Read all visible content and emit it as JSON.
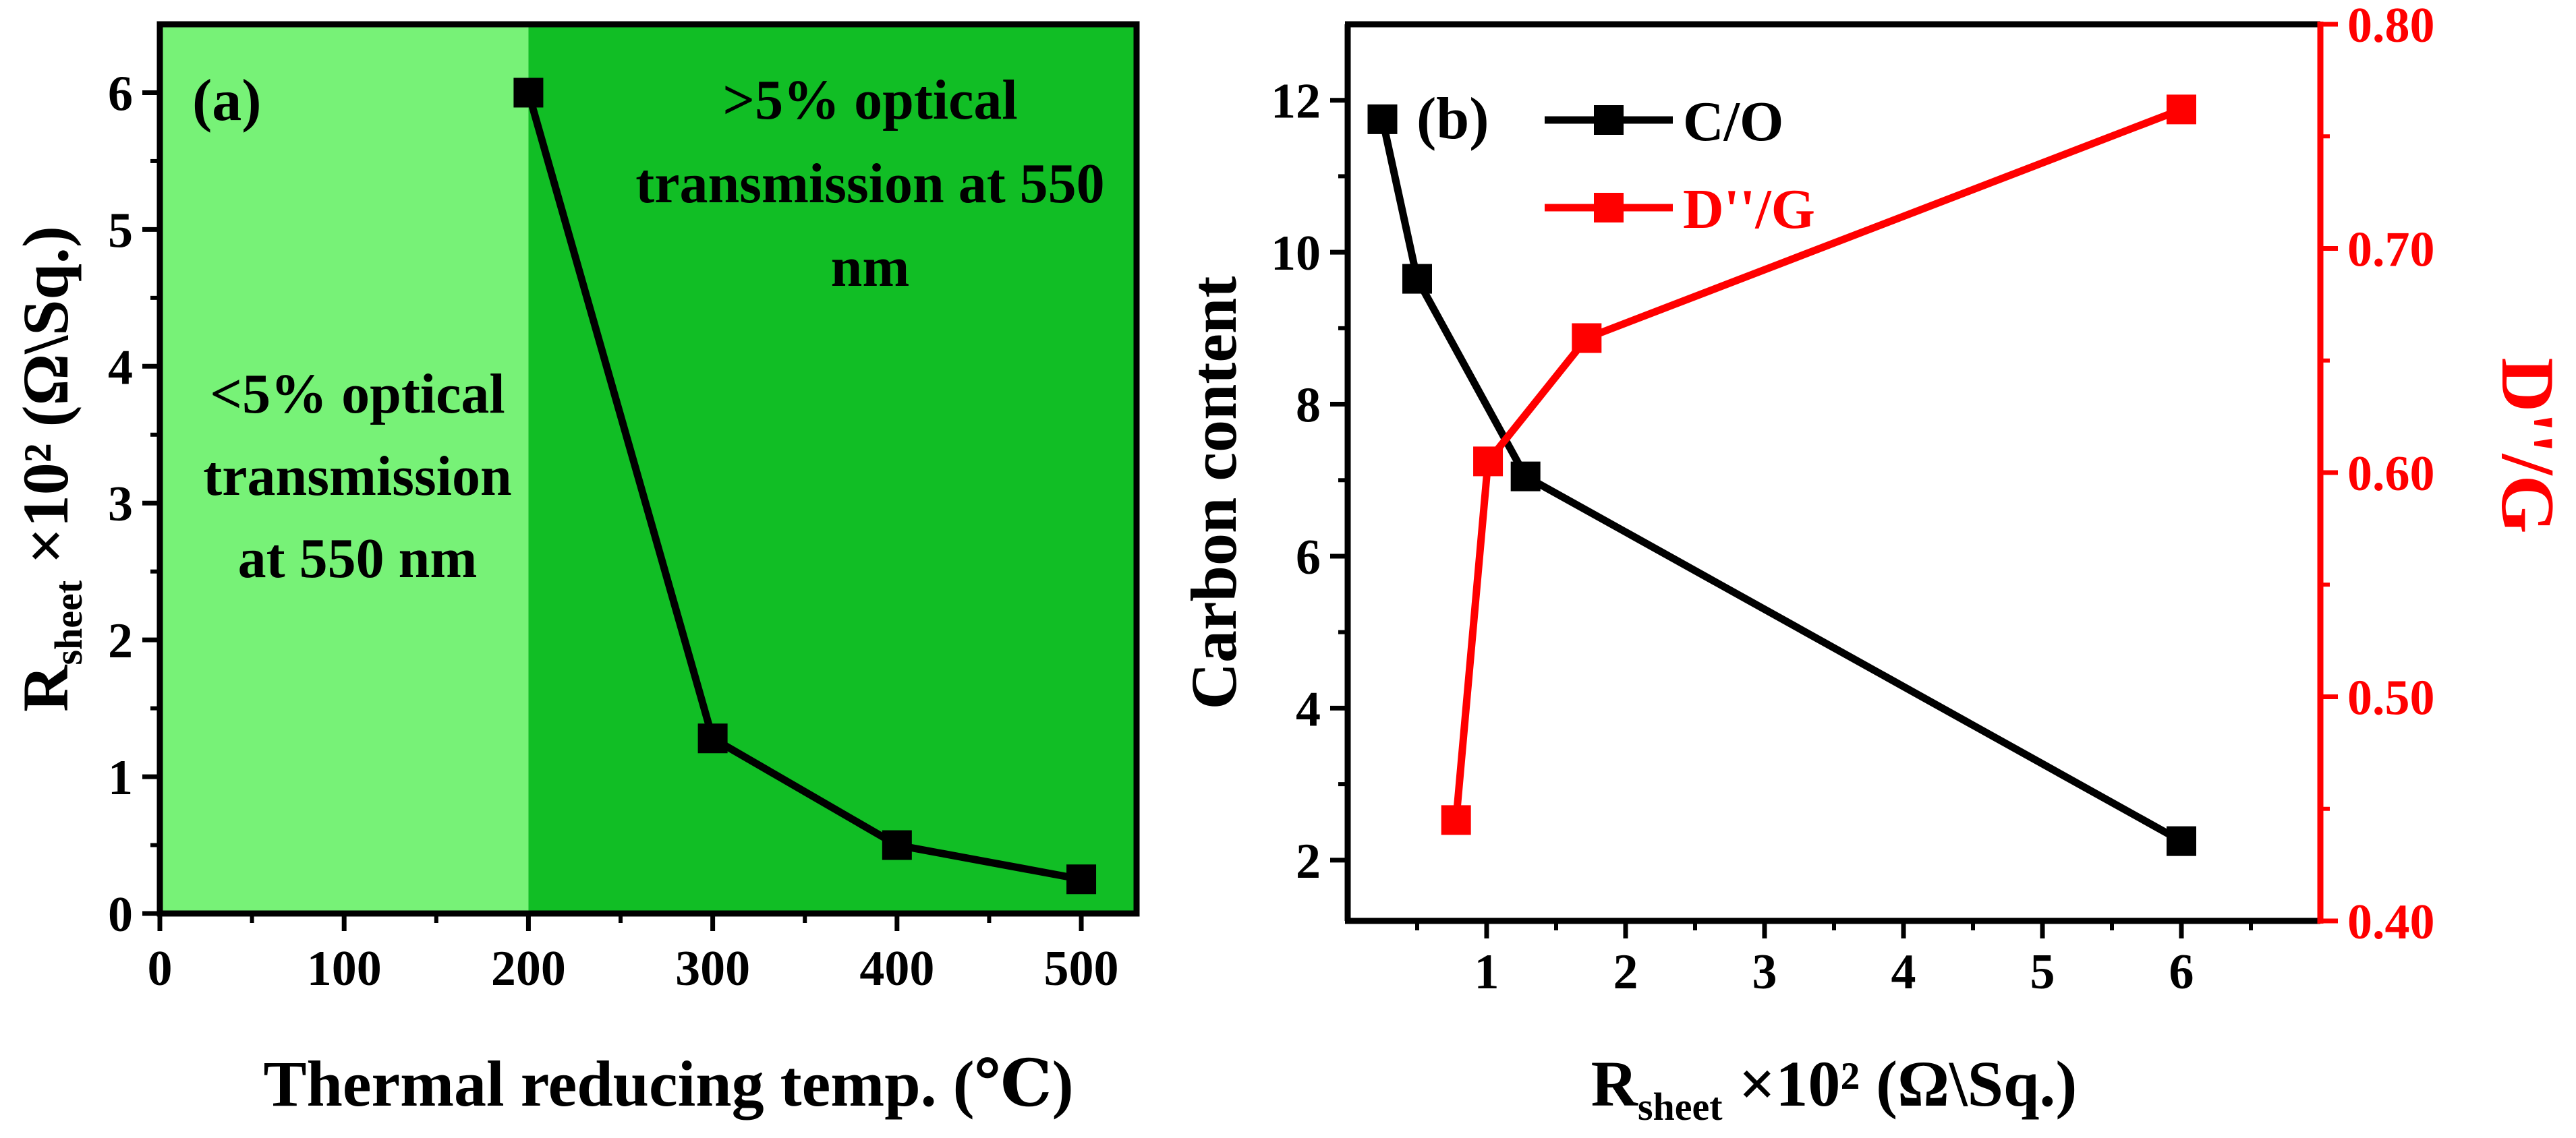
{
  "chart_data": [
    {
      "id": "a",
      "type": "line",
      "panel_label": "(a)",
      "xlabel": "Thermal reducing temp. (℃)",
      "ylabel": {
        "main": "R",
        "sub": "sheet",
        "rest": " ×10² (Ω\\Sq.)"
      },
      "xlim": [
        0,
        530
      ],
      "ylim": [
        0,
        6.5
      ],
      "xticks": [
        0,
        100,
        200,
        300,
        400,
        500
      ],
      "xtick_labels": [
        "0",
        "100",
        "200",
        "300",
        "400",
        "500"
      ],
      "yticks": [
        0,
        1,
        2,
        3,
        4,
        5,
        6
      ],
      "ytick_labels": [
        "0",
        "1",
        "2",
        "3",
        "4",
        "5",
        "6"
      ],
      "regions": [
        {
          "name": "low-transmission-region",
          "x_from": 0,
          "x_to": 200,
          "color": "#77F277",
          "label_lines": [
            "<5% optical",
            "transmission",
            "at 550 nm"
          ]
        },
        {
          "name": "high-transmission-region",
          "x_from": 200,
          "x_to": 530,
          "color": "#11BE25",
          "label_lines": [
            ">5% optical",
            "transmission at 550",
            "nm"
          ]
        }
      ],
      "series": [
        {
          "name": "Rsheet",
          "color": "#000000",
          "marker": "square",
          "x": [
            200,
            300,
            400,
            500
          ],
          "y": [
            6.0,
            1.28,
            0.5,
            0.25
          ]
        }
      ]
    },
    {
      "id": "b",
      "type": "line",
      "panel_label": "(b)",
      "xlabel": {
        "main": "R",
        "sub": "sheet",
        "rest": " ×10² (Ω\\Sq.)"
      },
      "ylabel": "Carbon content",
      "y2label": "D''/G",
      "xlim": [
        0,
        7
      ],
      "ylim": [
        1.2,
        13
      ],
      "y2lim": [
        0.4,
        0.8
      ],
      "xticks": [
        1,
        2,
        3,
        4,
        5,
        6
      ],
      "xtick_labels": [
        "1",
        "2",
        "3",
        "4",
        "5",
        "6"
      ],
      "yticks": [
        2,
        4,
        6,
        8,
        10,
        12
      ],
      "ytick_labels": [
        "2",
        "4",
        "6",
        "8",
        "10",
        "12"
      ],
      "y2ticks": [
        0.4,
        0.5,
        0.6,
        0.7,
        0.8
      ],
      "y2tick_labels": [
        "0.40",
        "0.50",
        "0.60",
        "0.70",
        "0.80"
      ],
      "legend_position": "top-left",
      "series": [
        {
          "name": "C/O",
          "color": "#000000",
          "marker": "square",
          "axis": "left",
          "x": [
            0.25,
            0.5,
            1.28,
            6.0
          ],
          "y": [
            11.75,
            9.65,
            7.05,
            2.25
          ]
        },
        {
          "name": "D''/G",
          "color": "#FF0000",
          "marker": "square",
          "axis": "right",
          "x": [
            0.78,
            1.01,
            1.72,
            6.0
          ],
          "y": [
            0.445,
            0.605,
            0.66,
            0.762
          ]
        }
      ]
    }
  ]
}
